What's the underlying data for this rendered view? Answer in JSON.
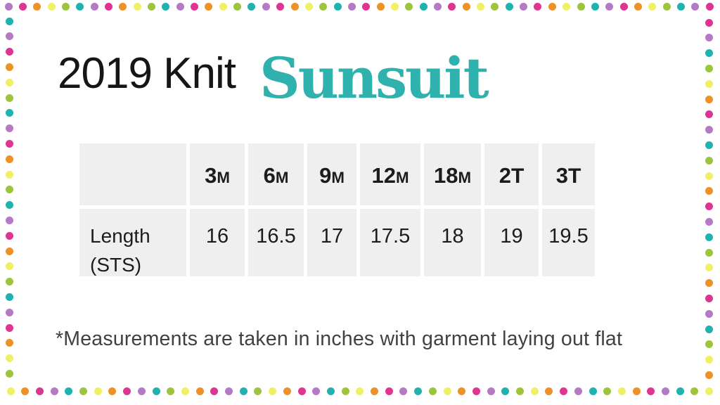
{
  "header": {
    "title_plain": "2019 Knit",
    "title_brand": "Sunsuit"
  },
  "size_chart": {
    "columns": [
      {
        "num": "3",
        "unit": "M"
      },
      {
        "num": "6",
        "unit": "M"
      },
      {
        "num": "9",
        "unit": "M"
      },
      {
        "num": "12",
        "unit": "M"
      },
      {
        "num": "18",
        "unit": "M"
      },
      {
        "num": "2",
        "unit": "T"
      },
      {
        "num": "3",
        "unit": "T"
      }
    ],
    "row_label": "Length (STS)",
    "values": [
      "16",
      "16.5",
      "17",
      "17.5",
      "18",
      "19",
      "19.5"
    ]
  },
  "footnote": {
    "text": "*Measurements are taken in inches with garment laying out flat"
  },
  "colors": {
    "brand_teal": "#2fb1ad",
    "table_cell_bg": "#efeff0",
    "footnote_text": "#414141",
    "title_text": "#161616",
    "table_text": "#1c1c1c"
  },
  "border": {
    "dot_colors": {
      "pink": "#df3492",
      "orange": "#ee9127",
      "yellow": "#eff063",
      "green": "#9cc53d",
      "teal": "#1fb3b0",
      "purple": "#b679c6"
    },
    "edge_sequences": {
      "top": [
        "purple",
        "pink",
        "orange",
        "yellow",
        "green",
        "teal"
      ],
      "bottom": [
        "yellow",
        "orange",
        "pink",
        "purple",
        "teal",
        "green"
      ],
      "left": [
        "teal",
        "purple",
        "pink",
        "orange",
        "yellow",
        "green"
      ],
      "right": [
        "pink",
        "purple",
        "teal",
        "green",
        "yellow",
        "orange"
      ]
    }
  }
}
